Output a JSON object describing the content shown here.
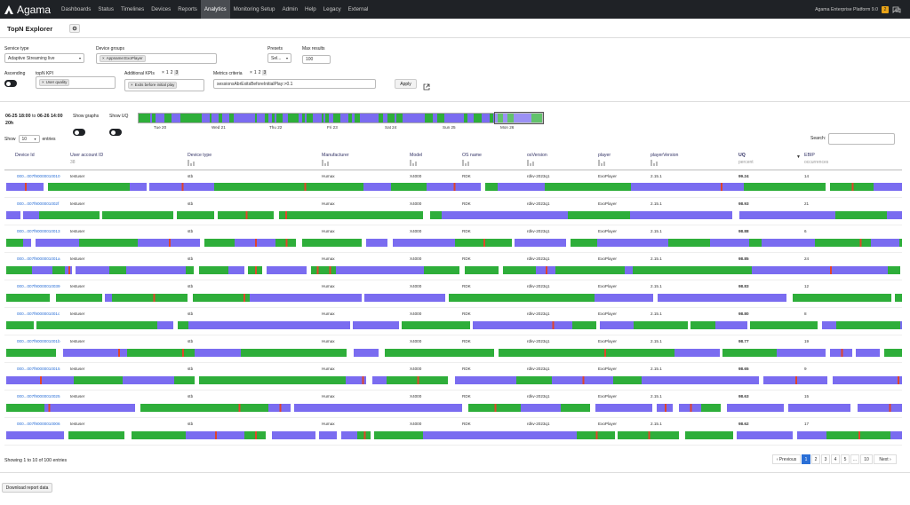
{
  "nav": {
    "brand": "Agama",
    "items": [
      "Dashboards",
      "Status",
      "Timelines",
      "Devices",
      "Reports",
      "Analytics",
      "Monitoring Setup",
      "Admin",
      "Help",
      "Legacy",
      "External"
    ],
    "active": "Analytics",
    "platform": "Agama Enterprise Platform 9.0",
    "notifications": "2"
  },
  "page": {
    "title": "TopN Explorer"
  },
  "form": {
    "service_type_label": "Service type",
    "service_type_value": "Adaptive Streaming live",
    "device_groups_label": "Device groups",
    "device_groups_chip": "Appname:ExoPlayer",
    "presets_label": "Presets",
    "presets_value": "Sel...",
    "max_results_label": "Max results",
    "max_results_value": "100",
    "ascending_label": "Ascending",
    "topn_kpi_label": "topN KPI",
    "topn_kpi_chip": "User quality",
    "additional_kpis_label": "Additional KPIs",
    "additional_kpis_chip": "Exits before initial play",
    "metrics_criteria_label": "Metrics criteria",
    "metrics_criteria_value": "sessionsAbrExitsBeforeInitialPlay:>0.1",
    "apply_label": "Apply",
    "page_links": [
      "1",
      "2",
      "3"
    ]
  },
  "timeline": {
    "range_from": "06-25 18:00",
    "range_to_word": "to",
    "range_to": "06-26 14:00",
    "duration": "20h",
    "show_graphs_label": "Show graphs",
    "show_uq_label": "Show UQ",
    "ticks": [
      "Tue 20",
      "Wed 21",
      "Thu 22",
      "Fri 23",
      "Sat 24",
      "Sun 25",
      "Mon 26"
    ]
  },
  "table_controls": {
    "show_label": "Show",
    "entries_value": "10",
    "entries_label": "entries",
    "search_label": "Search:",
    "info": "Showing 1 to 10 of 100 entries"
  },
  "columns": [
    {
      "label": "Device Id",
      "sub": ""
    },
    {
      "label": "User account ID",
      "sub": "38"
    },
    {
      "label": "Device type",
      "sub": ""
    },
    {
      "label": "Manufacturer",
      "sub": ""
    },
    {
      "label": "Model",
      "sub": ""
    },
    {
      "label": "OS name",
      "sub": ""
    },
    {
      "label": "osVersion",
      "sub": ""
    },
    {
      "label": "player",
      "sub": "1"
    },
    {
      "label": "playerVersion",
      "sub": ""
    },
    {
      "label": "UQ",
      "sub": "percent"
    },
    {
      "label": "EBIP",
      "sub": "occurrences"
    }
  ],
  "rows": [
    {
      "device": "000...007f90000010010",
      "user": "testuser",
      "type": "stb",
      "mfr": "Humax",
      "model": "X4000",
      "os": "RDK",
      "osv": "rdkv-2023q1",
      "player": "ExoPlayer",
      "pv": "2.15.1",
      "uq": "99.24",
      "ebip": "14"
    },
    {
      "device": "000...007f9000001002f",
      "user": "testuser",
      "type": "stb",
      "mfr": "Humax",
      "model": "X4000",
      "os": "RDK",
      "osv": "rdkv-2023q1",
      "player": "ExoPlayer",
      "pv": "2.15.1",
      "uq": "98.93",
      "ebip": "21"
    },
    {
      "device": "000...007f90000010013",
      "user": "testuser",
      "type": "stb",
      "mfr": "Humax",
      "model": "X4000",
      "os": "RDK",
      "osv": "rdkv-2023q1",
      "player": "ExoPlayer",
      "pv": "2.15.1",
      "uq": "98.88",
      "ebip": "6"
    },
    {
      "device": "000...007f9000001001a",
      "user": "testuser",
      "type": "stb",
      "mfr": "Humax",
      "model": "X4000",
      "os": "RDK",
      "osv": "rdkv-2023q1",
      "player": "ExoPlayer",
      "pv": "2.15.1",
      "uq": "98.85",
      "ebip": "24"
    },
    {
      "device": "000...007f90000010039",
      "user": "testuser",
      "type": "stb",
      "mfr": "Humax",
      "model": "X4000",
      "os": "RDK",
      "osv": "rdkv-2023q1",
      "player": "ExoPlayer",
      "pv": "2.15.1",
      "uq": "98.83",
      "ebip": "12"
    },
    {
      "device": "000...007f9000001001c",
      "user": "testuser",
      "type": "stb",
      "mfr": "Humax",
      "model": "X4000",
      "os": "RDK",
      "osv": "rdkv-2023q1",
      "player": "ExoPlayer",
      "pv": "2.15.1",
      "uq": "98.80",
      "ebip": "8"
    },
    {
      "device": "000...007f9000001001b",
      "user": "testuser",
      "type": "stb",
      "mfr": "Humax",
      "model": "X4000",
      "os": "RDK",
      "osv": "rdkv-2023q1",
      "player": "ExoPlayer",
      "pv": "2.15.1",
      "uq": "98.77",
      "ebip": "19"
    },
    {
      "device": "000...007f90000010015",
      "user": "testuser",
      "type": "stb",
      "mfr": "Humax",
      "model": "X4000",
      "os": "RDK",
      "osv": "rdkv-2023q1",
      "player": "ExoPlayer",
      "pv": "2.15.1",
      "uq": "98.65",
      "ebip": "9"
    },
    {
      "device": "000...007f90000010025",
      "user": "testuser",
      "type": "stb",
      "mfr": "Humax",
      "model": "X4000",
      "os": "RDK",
      "osv": "rdkv-2023q1",
      "player": "ExoPlayer",
      "pv": "2.15.1",
      "uq": "98.63",
      "ebip": "15"
    },
    {
      "device": "000...007f90000010006",
      "user": "testuser",
      "type": "stb",
      "mfr": "Humax",
      "model": "X4000",
      "os": "RDK",
      "osv": "rdkv-2023q1",
      "player": "ExoPlayer",
      "pv": "2.15.1",
      "uq": "98.62",
      "ebip": "17"
    }
  ],
  "pagination": {
    "previous": "Previous",
    "pages": [
      "1",
      "2",
      "3",
      "4",
      "5",
      "...",
      "10"
    ],
    "next": "Next",
    "current": "1"
  },
  "footer": {
    "download_label": "Download report data"
  },
  "colors": {
    "good": "#2eae3a",
    "medium": "#7a6cf0",
    "bad": "#e0452b",
    "nav": "#1f2226",
    "link": "#2a6fd6"
  }
}
